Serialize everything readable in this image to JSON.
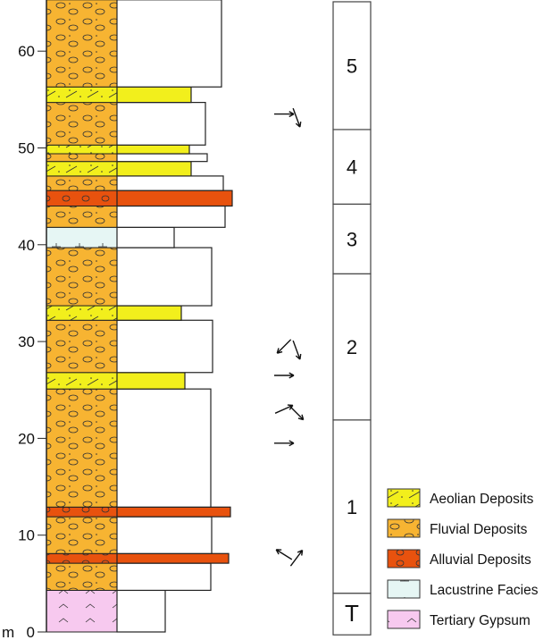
{
  "axis": {
    "unit": "m",
    "ticks": [
      0,
      10,
      20,
      30,
      40,
      50,
      60
    ]
  },
  "layers": [
    {
      "from": 0,
      "to": 4.3,
      "lithology": "gypsum"
    },
    {
      "from": 4.3,
      "to": 7.1,
      "lithology": "fluvial"
    },
    {
      "from": 7.1,
      "to": 8.1,
      "lithology": "alluvial"
    },
    {
      "from": 8.1,
      "to": 11.9,
      "lithology": "fluvial"
    },
    {
      "from": 11.9,
      "to": 12.9,
      "lithology": "alluvial"
    },
    {
      "from": 12.9,
      "to": 25.1,
      "lithology": "fluvial"
    },
    {
      "from": 25.1,
      "to": 26.8,
      "lithology": "aeolian"
    },
    {
      "from": 26.8,
      "to": 32.2,
      "lithology": "fluvial"
    },
    {
      "from": 32.2,
      "to": 33.7,
      "lithology": "aeolian"
    },
    {
      "from": 33.7,
      "to": 39.7,
      "lithology": "fluvial"
    },
    {
      "from": 39.7,
      "to": 41.8,
      "lithology": "lacustrine"
    },
    {
      "from": 41.8,
      "to": 44.0,
      "lithology": "fluvial"
    },
    {
      "from": 44.0,
      "to": 45.6,
      "lithology": "alluvial"
    },
    {
      "from": 45.6,
      "to": 47.1,
      "lithology": "fluvial"
    },
    {
      "from": 47.1,
      "to": 48.6,
      "lithology": "aeolian"
    },
    {
      "from": 48.6,
      "to": 49.4,
      "lithology": "fluvial"
    },
    {
      "from": 49.4,
      "to": 50.3,
      "lithology": "aeolian"
    },
    {
      "from": 50.3,
      "to": 54.7,
      "lithology": "fluvial"
    },
    {
      "from": 54.7,
      "to": 56.3,
      "lithology": "aeolian"
    },
    {
      "from": 56.3,
      "to": 65.3,
      "lithology": "fluvial"
    }
  ],
  "units": [
    {
      "label": "T",
      "from": -0.3,
      "to": 4.0
    },
    {
      "label": "1",
      "from": 4.0,
      "to": 21.9
    },
    {
      "label": "2",
      "from": 21.9,
      "to": 37.0
    },
    {
      "label": "3",
      "from": 37.0,
      "to": 44.2
    },
    {
      "label": "4",
      "from": 44.2,
      "to": 51.9
    },
    {
      "label": "5",
      "from": 51.9,
      "to": 65.1
    }
  ],
  "paleocurrent_arrows": [
    {
      "at": 53.5,
      "directions": [
        "east",
        "south-southeast"
      ]
    },
    {
      "at": 29.5,
      "directions": [
        "southwest",
        "south-southeast"
      ]
    },
    {
      "at": 26.5,
      "directions": [
        "east"
      ]
    },
    {
      "at": 23.0,
      "directions": [
        "east-northeast",
        "southeast"
      ]
    },
    {
      "at": 19.5,
      "directions": [
        "east"
      ]
    },
    {
      "at": 8.0,
      "directions": [
        "northwest",
        "northeast"
      ]
    }
  ],
  "legend": [
    {
      "key": "aeolian",
      "label": "Aeolian Deposits",
      "color": "#f2ef1c"
    },
    {
      "key": "fluvial",
      "label": "Fluvial Deposits",
      "color": "#f7b432"
    },
    {
      "key": "alluvial",
      "label": "Alluvial Deposits",
      "color": "#e8520e"
    },
    {
      "key": "lacustrine",
      "label": "Lacustrine Facies",
      "color": "#e6f6f4"
    },
    {
      "key": "gypsum",
      "label": "Tertiary Gypsum",
      "color": "#f7c9ef"
    }
  ]
}
